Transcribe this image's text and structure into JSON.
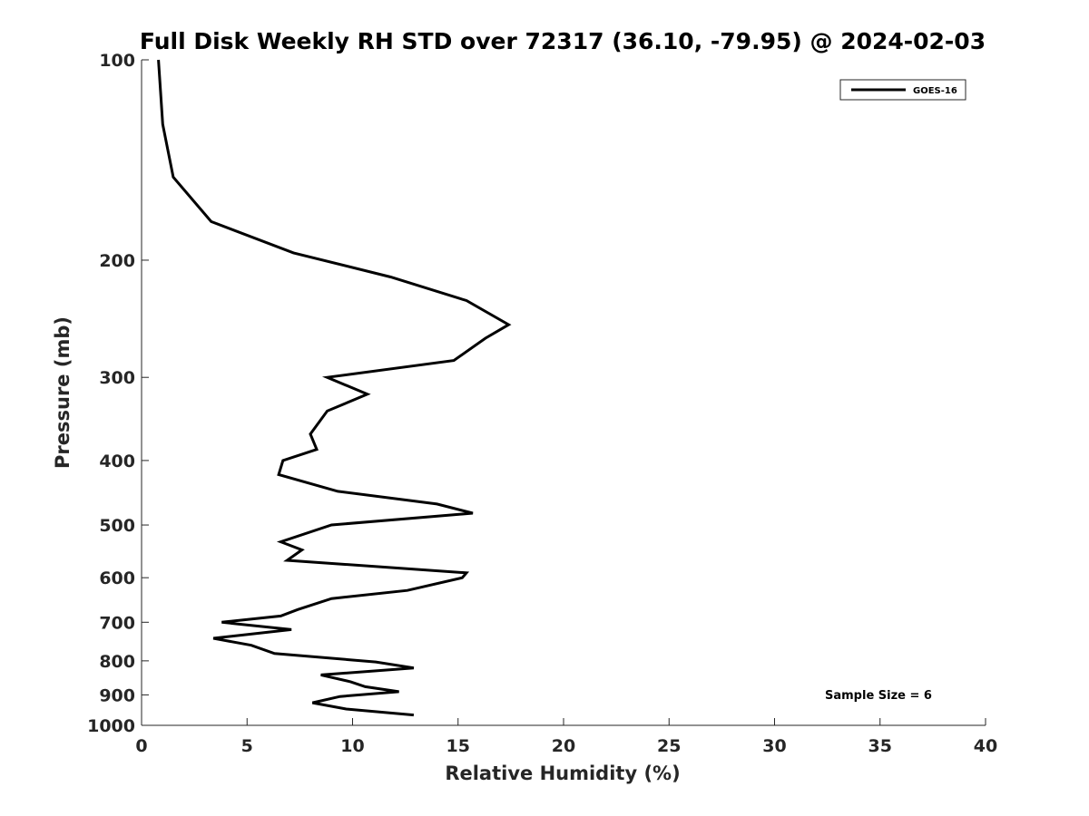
{
  "chart_data": {
    "type": "line",
    "title": "Full Disk Weekly RH STD over 72317 (36.10, -79.95) @ 2024-02-03",
    "xlabel": "Relative Humidity (%)",
    "ylabel": "Pressure (mb)",
    "xlim": [
      0,
      40
    ],
    "ylim": [
      100,
      1000
    ],
    "y_scale": "log",
    "y_reversed": true,
    "x_ticks": [
      "0",
      "5",
      "10",
      "15",
      "20",
      "25",
      "30",
      "35",
      "40"
    ],
    "y_ticks": [
      "100",
      "200",
      "300",
      "400",
      "500",
      "600",
      "700",
      "800",
      "900",
      "1000"
    ],
    "grid": false,
    "legend_position": "top-right",
    "series": [
      {
        "name": "GOES-16",
        "color": "#000000",
        "points": [
          [
            0.8,
            100
          ],
          [
            1.0,
            125
          ],
          [
            1.5,
            150
          ],
          [
            3.3,
            175
          ],
          [
            7.2,
            195
          ],
          [
            11.8,
            212
          ],
          [
            15.4,
            230
          ],
          [
            17.4,
            250
          ],
          [
            16.3,
            262
          ],
          [
            14.8,
            283
          ],
          [
            8.8,
            300
          ],
          [
            10.7,
            318
          ],
          [
            8.8,
            337
          ],
          [
            8.0,
            365
          ],
          [
            8.3,
            385
          ],
          [
            6.7,
            400
          ],
          [
            6.5,
            420
          ],
          [
            9.3,
            445
          ],
          [
            14.0,
            465
          ],
          [
            15.7,
            480
          ],
          [
            9.0,
            500
          ],
          [
            6.6,
            530
          ],
          [
            7.6,
            545
          ],
          [
            6.9,
            565
          ],
          [
            15.4,
            590
          ],
          [
            15.2,
            600
          ],
          [
            12.6,
            627
          ],
          [
            9.0,
            645
          ],
          [
            7.4,
            670
          ],
          [
            6.6,
            685
          ],
          [
            3.8,
            700
          ],
          [
            7.1,
            718
          ],
          [
            3.4,
            740
          ],
          [
            5.2,
            758
          ],
          [
            6.3,
            780
          ],
          [
            11.1,
            803
          ],
          [
            12.9,
            820
          ],
          [
            8.5,
            840
          ],
          [
            9.9,
            860
          ],
          [
            10.6,
            875
          ],
          [
            12.2,
            890
          ],
          [
            9.4,
            905
          ],
          [
            8.1,
            925
          ],
          [
            9.7,
            945
          ],
          [
            12.9,
            965
          ]
        ]
      }
    ],
    "annotations": [
      {
        "text": "Sample Size = 6",
        "position": "bottom-right"
      }
    ]
  }
}
